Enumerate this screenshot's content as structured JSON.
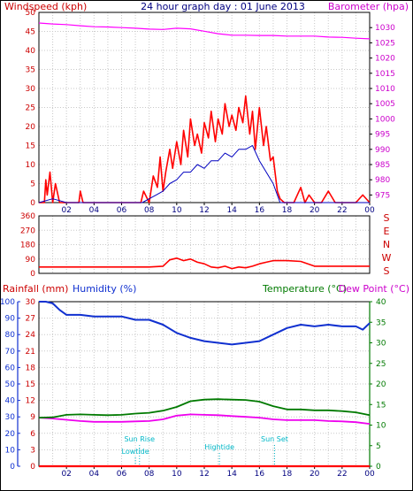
{
  "header": {
    "left_label": "Windspeed (kph)",
    "title": "24 hour graph day : 01 June 2013",
    "right_label": "Barometer (hpa)"
  },
  "colors": {
    "wind_red": "#ff0000",
    "wind_blue": "#0000c0",
    "baro": "#ff00ff",
    "axis_red": "#cc0000",
    "hum_blue": "#1030d0",
    "temp_green": "#007a00",
    "dew_magenta": "#ee00ee",
    "rain_red": "#ff0000",
    "annot": "#00b8c8",
    "grid": "#c8c8c8"
  },
  "x_ticks": [
    "02",
    "04",
    "06",
    "08",
    "10",
    "12",
    "14",
    "16",
    "18",
    "20",
    "22",
    "00"
  ],
  "compass_letters": [
    "S",
    "E",
    "N",
    "W",
    "S"
  ],
  "panel3_labels": {
    "rainfall": "Rainfall (mm)",
    "humidity": "Humidity (%)",
    "temperature": "Temperature (°C)",
    "dewpoint": "Dew Point (°C)"
  },
  "annotations": {
    "sunrise": "Sun Rise",
    "lowtide": "Lowtide",
    "hightide": "Hightide",
    "sunset": "Sun Set"
  },
  "chart_data": [
    {
      "type": "line",
      "panel": "wind_and_barometer",
      "y_left_ticks": [
        0,
        5,
        10,
        15,
        20,
        25,
        30,
        35,
        40,
        45,
        50
      ],
      "y_left_range": [
        0,
        50
      ],
      "y_right_ticks": [
        975,
        980,
        985,
        990,
        995,
        1000,
        1005,
        1010,
        1015,
        1020,
        1025,
        1030
      ],
      "y_right_range": [
        972.5,
        1035
      ],
      "series": [
        {
          "axis": "left",
          "style": "gust",
          "x": [
            0,
            0.4,
            0.5,
            0.6,
            0.8,
            1.0,
            1.2,
            1.5,
            2.0,
            2.5,
            2.9,
            3.0,
            3.2,
            3.5,
            4.0,
            4.5,
            5.0,
            5.5,
            6.0,
            6.5,
            7.0,
            7.4,
            7.6,
            8.0,
            8.3,
            8.6,
            8.8,
            9.0,
            9.2,
            9.5,
            9.7,
            10.0,
            10.3,
            10.5,
            10.8,
            11.0,
            11.3,
            11.5,
            11.8,
            12.0,
            12.3,
            12.5,
            12.8,
            13.0,
            13.3,
            13.5,
            13.8,
            14.0,
            14.3,
            14.5,
            14.8,
            15.0,
            15.3,
            15.5,
            15.7,
            16.0,
            16.3,
            16.5,
            16.8,
            17.0,
            17.3,
            17.5,
            17.8,
            18.0,
            18.5,
            19.0,
            19.3,
            19.6,
            20.0,
            20.5,
            21.0,
            21.5,
            22.0,
            22.5,
            23.0,
            23.5,
            24.0
          ],
          "y": [
            0,
            0,
            6,
            2,
            8,
            0,
            5,
            0,
            0,
            0,
            0,
            3,
            0,
            0,
            0,
            0,
            0,
            0,
            0,
            0,
            0,
            0,
            3,
            0,
            7,
            4,
            12,
            3,
            8,
            14,
            9,
            16,
            10,
            19,
            12,
            22,
            15,
            18,
            13,
            21,
            17,
            24,
            16,
            22,
            18,
            26,
            20,
            23,
            19,
            25,
            21,
            28,
            18,
            24,
            14,
            25,
            15,
            20,
            11,
            12,
            3,
            1,
            0,
            0,
            0,
            4,
            0,
            2,
            0,
            0,
            3,
            0,
            0,
            0,
            0,
            2,
            0
          ]
        },
        {
          "axis": "left",
          "style": "average",
          "x": [
            0,
            1,
            2,
            3,
            4,
            5,
            6,
            7,
            7.5,
            8,
            8.5,
            9,
            9.5,
            10,
            10.5,
            11,
            11.5,
            12,
            12.5,
            13,
            13.5,
            14,
            14.5,
            15,
            15.5,
            16,
            16.5,
            17,
            17.3,
            17.5,
            18,
            19,
            20,
            21,
            22,
            23,
            24
          ],
          "y": [
            0,
            1,
            0,
            0,
            0,
            0,
            0,
            0,
            0,
            1,
            2,
            3,
            5,
            6,
            8,
            8,
            10,
            9,
            11,
            11,
            13,
            12,
            14,
            14,
            15,
            11,
            8,
            5,
            2,
            0,
            0,
            0,
            0,
            0,
            0,
            0,
            0
          ]
        },
        {
          "axis": "right",
          "name": "Barometer (hpa)",
          "x": [
            0,
            1,
            2,
            3,
            4,
            5,
            6,
            7,
            8,
            9,
            10,
            11,
            12,
            13,
            14,
            15,
            16,
            17,
            18,
            19,
            20,
            21,
            22,
            23,
            24
          ],
          "y": [
            1031.5,
            1031.2,
            1031,
            1030.6,
            1030.3,
            1030.2,
            1030,
            1029.8,
            1029.5,
            1029.4,
            1029.8,
            1029.6,
            1028.8,
            1028,
            1027.5,
            1027.5,
            1027.4,
            1027.4,
            1027.2,
            1027.2,
            1027.2,
            1026.9,
            1026.8,
            1026.5,
            1026.3
          ]
        }
      ]
    },
    {
      "type": "line",
      "panel": "wind_direction",
      "y_left_ticks": [
        0,
        90,
        180,
        270,
        360
      ],
      "y_left_range": [
        0,
        360
      ],
      "series": [
        {
          "x": [
            0,
            2,
            4,
            6,
            8,
            9,
            9.5,
            10,
            10.5,
            11,
            11.5,
            12,
            12.5,
            13,
            13.5,
            14,
            14.5,
            15,
            15.5,
            16,
            16.5,
            17,
            18,
            19,
            20,
            21,
            22,
            23,
            24
          ],
          "y": [
            40,
            40,
            40,
            40,
            40,
            45,
            85,
            95,
            80,
            90,
            70,
            60,
            40,
            35,
            45,
            30,
            40,
            35,
            45,
            60,
            70,
            80,
            80,
            75,
            45,
            45,
            45,
            45,
            45
          ]
        }
      ]
    },
    {
      "type": "line",
      "panel": "rain_humidity_temperature",
      "y_humidity_ticks": [
        0,
        10,
        20,
        30,
        40,
        50,
        60,
        70,
        80,
        90,
        100
      ],
      "y_rain_ticks": [
        0,
        3,
        6,
        9,
        12,
        15,
        18,
        21,
        24,
        27,
        30
      ],
      "y_temp_ticks": [
        0,
        5,
        10,
        15,
        20,
        25,
        30,
        35,
        40
      ],
      "y_temp_range": [
        0,
        40
      ],
      "series": [
        {
          "name": "Humidity (%)",
          "axis": "humidity",
          "x": [
            0,
            0.5,
            1,
            1.5,
            2,
            3,
            4,
            5,
            6,
            7,
            8,
            9,
            10,
            11,
            12,
            13,
            14,
            15,
            16,
            17,
            18,
            19,
            20,
            21,
            22,
            23,
            23.5,
            24
          ],
          "y": [
            100,
            100,
            99,
            95,
            92,
            92,
            91,
            91,
            91,
            89,
            89,
            86,
            81,
            78,
            76,
            75,
            74,
            75,
            76,
            80,
            84,
            86,
            85,
            86,
            85,
            85,
            83,
            87
          ]
        },
        {
          "name": "Temperature (°C)",
          "axis": "temp",
          "x": [
            0,
            1,
            2,
            3,
            4,
            5,
            6,
            7,
            8,
            9,
            10,
            11,
            12,
            13,
            14,
            15,
            16,
            17,
            18,
            19,
            20,
            21,
            22,
            23,
            24
          ],
          "y": [
            11.8,
            11.9,
            12.5,
            12.6,
            12.5,
            12.4,
            12.5,
            12.8,
            13,
            13.5,
            14.4,
            15.8,
            16.2,
            16.3,
            16.2,
            16.1,
            15.7,
            14.6,
            13.8,
            13.8,
            13.6,
            13.6,
            13.4,
            13.1,
            12.4
          ]
        },
        {
          "name": "Dew Point (°C)",
          "axis": "temp",
          "x": [
            0,
            1,
            2,
            3,
            4,
            5,
            6,
            7,
            8,
            9,
            10,
            11,
            12,
            13,
            14,
            15,
            16,
            17,
            18,
            19,
            20,
            21,
            22,
            23,
            24
          ],
          "y": [
            11.8,
            11.6,
            11.3,
            11.0,
            10.8,
            10.8,
            10.8,
            10.9,
            11.0,
            11.4,
            12.3,
            12.6,
            12.5,
            12.4,
            12.2,
            12.0,
            11.8,
            11.4,
            11.2,
            11.2,
            11.2,
            11.0,
            10.9,
            10.7,
            10.3
          ]
        },
        {
          "name": "Rainfall (mm)",
          "axis": "rain",
          "x": [
            0,
            24
          ],
          "y": [
            0,
            0
          ]
        }
      ],
      "markers": [
        {
          "label_key": "sunrise",
          "x": 7.3
        },
        {
          "label_key": "lowtide",
          "x": 7.0
        },
        {
          "label_key": "hightide",
          "x": 13.1
        },
        {
          "label_key": "sunset",
          "x": 17.1
        }
      ]
    }
  ]
}
